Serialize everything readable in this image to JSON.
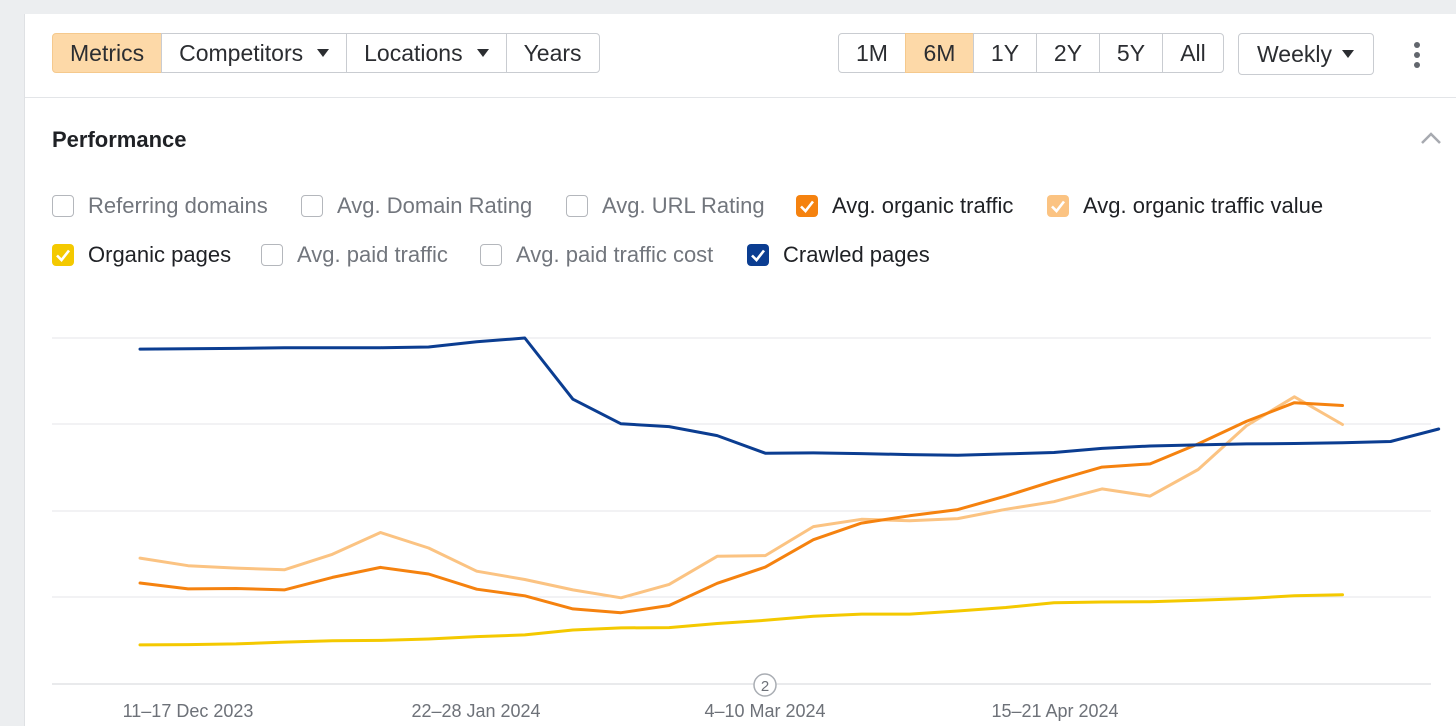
{
  "toolbar": {
    "tabs": [
      {
        "label": "Metrics",
        "active": true,
        "dropdown": false
      },
      {
        "label": "Competitors",
        "active": false,
        "dropdown": true
      },
      {
        "label": "Locations",
        "active": false,
        "dropdown": true
      },
      {
        "label": "Years",
        "active": false,
        "dropdown": false
      }
    ],
    "ranges": [
      {
        "label": "1M",
        "active": false
      },
      {
        "label": "6M",
        "active": true
      },
      {
        "label": "1Y",
        "active": false
      },
      {
        "label": "2Y",
        "active": false
      },
      {
        "label": "5Y",
        "active": false
      },
      {
        "label": "All",
        "active": false
      }
    ],
    "interval": "Weekly",
    "more_icon": "kebab-menu-icon"
  },
  "section": {
    "title": "Performance",
    "collapse_icon": "chevron-up-icon"
  },
  "legend": [
    {
      "label": "Referring domains",
      "checked": false,
      "color": "#b4b7bc"
    },
    {
      "label": "Avg. Domain Rating",
      "checked": false,
      "color": "#b4b7bc"
    },
    {
      "label": "Avg. URL Rating",
      "checked": false,
      "color": "#b4b7bc"
    },
    {
      "label": "Avg. organic traffic",
      "checked": true,
      "color": "#f5820f"
    },
    {
      "label": "Avg. organic traffic value",
      "checked": true,
      "color": "#fbc382"
    },
    {
      "label": "Organic pages",
      "checked": true,
      "color": "#f4c900"
    },
    {
      "label": "Avg. paid traffic",
      "checked": false,
      "color": "#b4b7bc"
    },
    {
      "label": "Avg. paid traffic cost",
      "checked": false,
      "color": "#b4b7bc"
    },
    {
      "label": "Crawled pages",
      "checked": true,
      "color": "#0b3d91"
    }
  ],
  "chart_data": {
    "type": "line",
    "grid": true,
    "y_axis_labels_shown": false,
    "x_tick_labels": [
      "11–17 Dec 2023",
      "22–28 Jan 2024",
      "4–10 Mar 2024",
      "15–21 Apr 2024"
    ],
    "annotation": {
      "label": "2"
    },
    "ylim": [
      0,
      100
    ],
    "series": [
      {
        "name": "Crawled pages",
        "color": "#0b3d91",
        "values": [
          96.8,
          96.9,
          97.0,
          97.2,
          97.2,
          97.2,
          97.4,
          98.9,
          100.0,
          82.3,
          75.2,
          74.4,
          71.8,
          66.7,
          66.8,
          66.6,
          66.3,
          66.1,
          66.5,
          66.9,
          68.1,
          68.8,
          69.1,
          69.4,
          69.5,
          69.7,
          70.1,
          73.7
        ]
      },
      {
        "name": "Avg. organic traffic",
        "color": "#f5820f",
        "values": [
          29.2,
          27.5,
          27.6,
          27.2,
          30.8,
          33.7,
          31.8,
          27.4,
          25.5,
          21.7,
          20.6,
          22.7,
          29.1,
          33.8,
          41.7,
          46.5,
          48.6,
          50.4,
          54.3,
          58.7,
          62.7,
          63.6,
          69.4,
          75.9,
          81.3,
          80.5
        ]
      },
      {
        "name": "Avg. organic traffic value",
        "color": "#fbc382",
        "values": [
          36.4,
          34.2,
          33.5,
          33.0,
          37.5,
          43.8,
          39.3,
          32.6,
          30.2,
          27.2,
          24.9,
          28.8,
          36.9,
          37.1,
          45.5,
          47.6,
          47.2,
          47.8,
          50.5,
          52.7,
          56.4,
          54.3,
          62.0,
          74.6,
          83.0,
          75.0
        ]
      },
      {
        "name": "Organic pages",
        "color": "#f4c900",
        "values": [
          11.3,
          11.4,
          11.6,
          12.1,
          12.5,
          12.6,
          13.0,
          13.7,
          14.2,
          15.6,
          16.2,
          16.3,
          17.5,
          18.4,
          19.6,
          20.2,
          20.2,
          21.1,
          22.1,
          23.5,
          23.7,
          23.8,
          24.2,
          24.7,
          25.5,
          25.8
        ]
      }
    ]
  }
}
